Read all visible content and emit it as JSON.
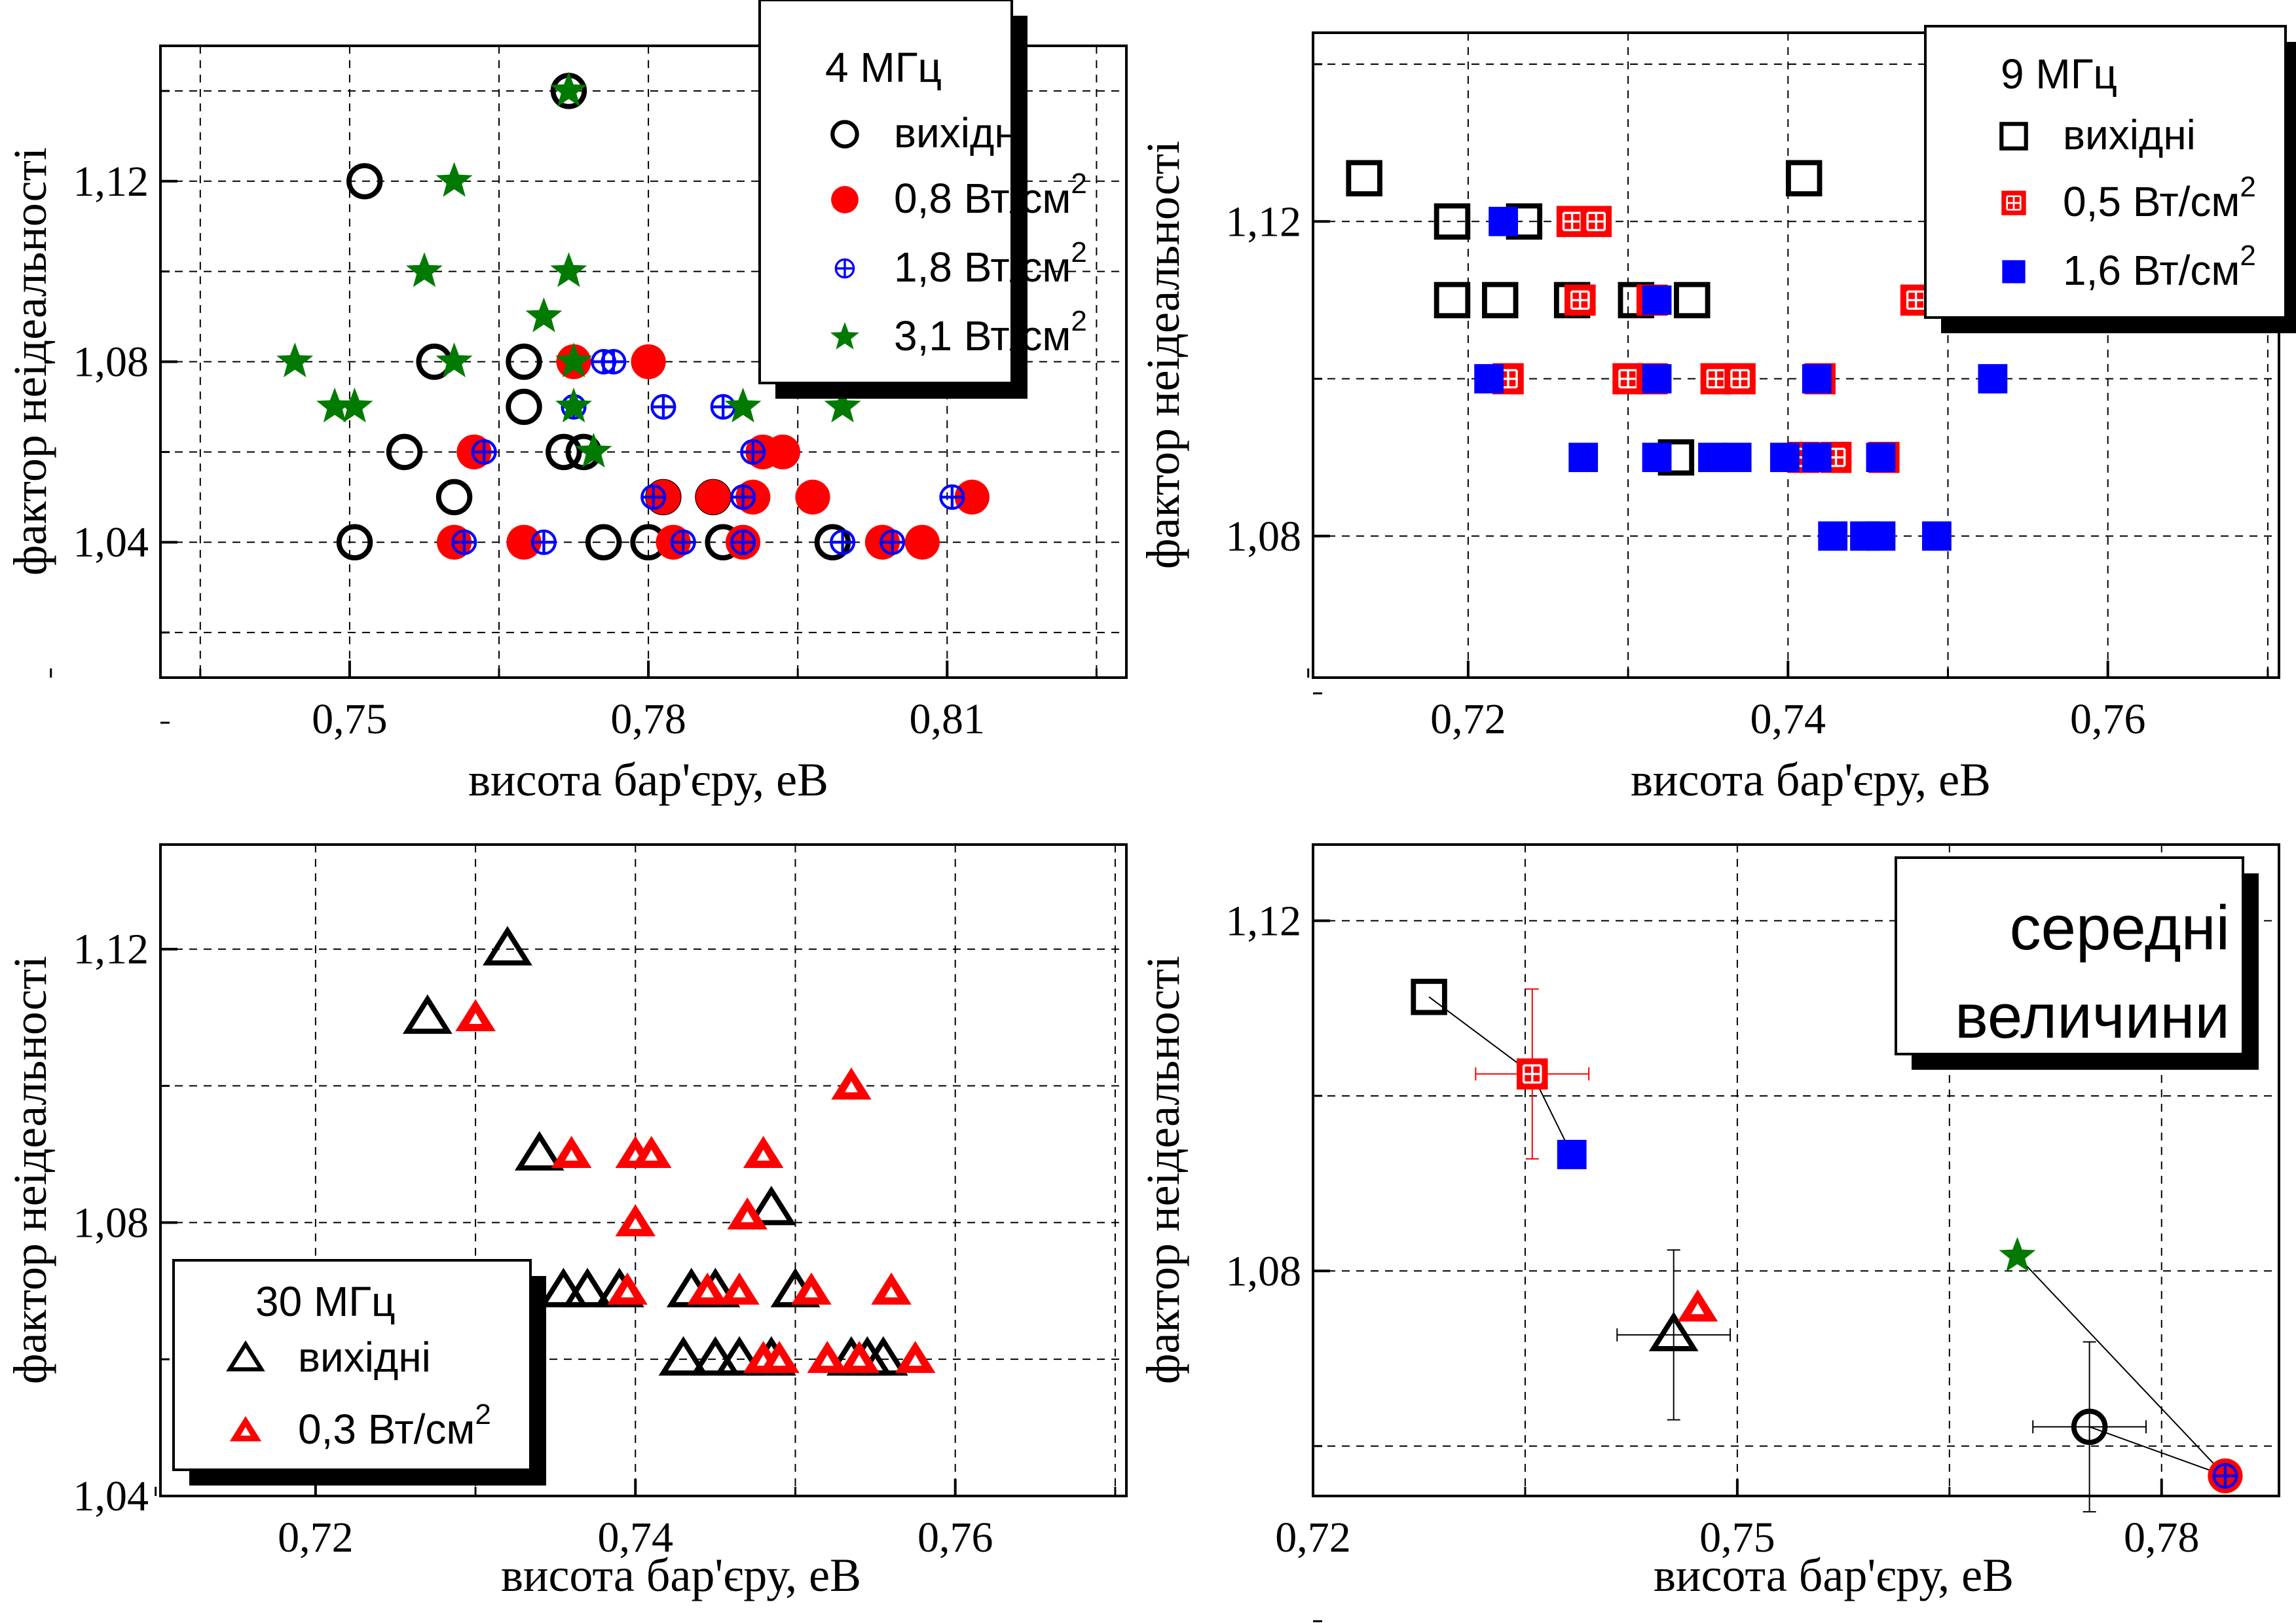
{
  "colors": {
    "black": "#000000",
    "red": "#ff0000",
    "blue": "#0000ff",
    "green": "#007a00"
  },
  "chart_data": [
    {
      "type": "scatter",
      "xlabel": "висота бар'єру,  еВ",
      "ylabel": "фактор неідеальності",
      "xlim": [
        0.731,
        0.828
      ],
      "ylim": [
        1.01,
        1.15
      ],
      "xticks": [
        0.75,
        0.78,
        0.81
      ],
      "xtick_labels": [
        "0,75",
        "0,78",
        "0,81"
      ],
      "yticks": [
        1.04,
        1.08,
        1.12
      ],
      "ytick_labels": [
        "1,04",
        "1,08",
        "1,12"
      ],
      "grid": true,
      "legend": {
        "title": "4 МГц",
        "entries": [
          {
            "label": "вихідні",
            "sup": ""
          },
          {
            "label": "0,8 Вт/см",
            "sup": "2"
          },
          {
            "label": "1,8 Вт/см",
            "sup": "2"
          },
          {
            "label": "3,1 Вт/см",
            "sup": "2"
          }
        ]
      },
      "series": [
        {
          "marker": "open-circle",
          "color": "#000000",
          "points": [
            [
              0.7515,
              1.12
            ],
            [
              0.7585,
              1.08
            ],
            [
              0.7675,
              1.08
            ],
            [
              0.7675,
              1.07
            ],
            [
              0.7715,
              1.06
            ],
            [
              0.7735,
              1.06
            ],
            [
              0.7555,
              1.06
            ],
            [
              0.7605,
              1.05
            ],
            [
              0.7505,
              1.04
            ],
            [
              0.7755,
              1.04
            ],
            [
              0.78,
              1.04
            ],
            [
              0.7815,
              1.05
            ],
            [
              0.7865,
              1.05
            ],
            [
              0.7875,
              1.04
            ],
            [
              0.7985,
              1.04
            ],
            [
              0.772,
              1.14
            ]
          ]
        },
        {
          "marker": "filled-circle",
          "color": "#ff0000",
          "points": [
            [
              0.7625,
              1.06
            ],
            [
              0.7725,
              1.08
            ],
            [
              0.78,
              1.08
            ],
            [
              0.7605,
              1.04
            ],
            [
              0.7675,
              1.04
            ],
            [
              0.7815,
              1.05
            ],
            [
              0.7825,
              1.04
            ],
            [
              0.7865,
              1.05
            ],
            [
              0.7905,
              1.05
            ],
            [
              0.7895,
              1.04
            ],
            [
              0.7915,
              1.06
            ],
            [
              0.7935,
              1.06
            ],
            [
              0.7965,
              1.05
            ],
            [
              0.8035,
              1.04
            ],
            [
              0.8075,
              1.04
            ],
            [
              0.8125,
              1.05
            ]
          ]
        },
        {
          "marker": "circle-plus",
          "color": "#0000ff",
          "points": [
            [
              0.7615,
              1.04
            ],
            [
              0.7695,
              1.04
            ],
            [
              0.7755,
              1.08
            ],
            [
              0.7765,
              1.08
            ],
            [
              0.7815,
              1.07
            ],
            [
              0.7875,
              1.07
            ],
            [
              0.7635,
              1.06
            ],
            [
              0.7905,
              1.06
            ],
            [
              0.7725,
              1.07
            ],
            [
              0.7805,
              1.05
            ],
            [
              0.7895,
              1.05
            ],
            [
              0.7835,
              1.04
            ],
            [
              0.7895,
              1.04
            ],
            [
              0.7995,
              1.04
            ],
            [
              0.8045,
              1.04
            ],
            [
              0.8105,
              1.05
            ]
          ]
        },
        {
          "marker": "star",
          "color": "#007a00",
          "points": [
            [
              0.772,
              1.14
            ],
            [
              0.7605,
              1.12
            ],
            [
              0.7575,
              1.1
            ],
            [
              0.772,
              1.1
            ],
            [
              0.7695,
              1.09
            ],
            [
              0.7445,
              1.08
            ],
            [
              0.7605,
              1.08
            ],
            [
              0.7725,
              1.08
            ],
            [
              0.7485,
              1.07
            ],
            [
              0.7505,
              1.07
            ],
            [
              0.7725,
              1.07
            ],
            [
              0.7745,
              1.06
            ],
            [
              0.7895,
              1.07
            ],
            [
              0.7995,
              1.07
            ]
          ]
        }
      ]
    },
    {
      "type": "scatter",
      "xlabel": "висота бар'єру,  еВ",
      "ylabel": "фактор неідеальності",
      "xlim": [
        0.7103,
        0.7707
      ],
      "ylim": [
        1.062,
        1.144
      ],
      "xticks": [
        0.72,
        0.74,
        0.76
      ],
      "xtick_labels": [
        "0,72",
        "0,74",
        "0,76"
      ],
      "yticks": [
        1.08,
        1.12
      ],
      "ytick_labels": [
        "1,08",
        "1,12"
      ],
      "grid": true,
      "legend": {
        "title": "9 МГц",
        "entries": [
          {
            "label": "вихідні",
            "sup": ""
          },
          {
            "label": "0,5 Вт/см",
            "sup": "2"
          },
          {
            "label": "1,6 Вт/см",
            "sup": "2"
          }
        ]
      },
      "series": [
        {
          "marker": "open-square",
          "color": "#000000",
          "points": [
            [
              0.7135,
              1.1255
            ],
            [
              0.741,
              1.1255
            ],
            [
              0.719,
              1.12
            ],
            [
              0.7235,
              1.12
            ],
            [
              0.719,
              1.11
            ],
            [
              0.722,
              1.11
            ],
            [
              0.7265,
              1.11
            ],
            [
              0.7305,
              1.11
            ],
            [
              0.734,
              1.11
            ],
            [
              0.733,
              1.09
            ]
          ]
        },
        {
          "marker": "square-grid",
          "color": "#ff0000",
          "points": [
            [
              0.7265,
              1.12
            ],
            [
              0.728,
              1.12
            ],
            [
              0.727,
              1.11
            ],
            [
              0.7315,
              1.11
            ],
            [
              0.748,
              1.11
            ],
            [
              0.7225,
              1.1
            ],
            [
              0.73,
              1.1
            ],
            [
              0.7315,
              1.1
            ],
            [
              0.7355,
              1.1
            ],
            [
              0.737,
              1.1
            ],
            [
              0.742,
              1.1
            ],
            [
              0.741,
              1.09
            ],
            [
              0.743,
              1.09
            ],
            [
              0.746,
              1.09
            ]
          ]
        },
        {
          "marker": "filled-square",
          "color": "#0000ff",
          "points": [
            [
              0.7222,
              1.12
            ],
            [
              0.7318,
              1.11
            ],
            [
              0.7213,
              1.1
            ],
            [
              0.7318,
              1.1
            ],
            [
              0.7418,
              1.1
            ],
            [
              0.7528,
              1.1
            ],
            [
              0.7272,
              1.09
            ],
            [
              0.7318,
              1.09
            ],
            [
              0.7353,
              1.09
            ],
            [
              0.7368,
              1.09
            ],
            [
              0.7398,
              1.09
            ],
            [
              0.7418,
              1.09
            ],
            [
              0.7458,
              1.09
            ],
            [
              0.7428,
              1.08
            ],
            [
              0.7448,
              1.08
            ],
            [
              0.7458,
              1.08
            ],
            [
              0.7493,
              1.08
            ]
          ]
        }
      ]
    },
    {
      "type": "scatter",
      "xlabel": "висота бар'єру,  еВ",
      "ylabel": "фактор неідеальності",
      "xlim": [
        0.7103,
        0.7707
      ],
      "ylim": [
        1.04,
        1.1353
      ],
      "xticks": [
        0.72,
        0.74,
        0.76
      ],
      "xtick_labels": [
        "0,72",
        "0,74",
        "0,76"
      ],
      "yticks": [
        1.04,
        1.08,
        1.12
      ],
      "ytick_labels": [
        "1,04",
        "1,08",
        "1,12"
      ],
      "grid": true,
      "legend": {
        "title": "30 МГц",
        "entries": [
          {
            "label": "вихідні",
            "sup": ""
          },
          {
            "label": "0,3 Вт/см",
            "sup": "2"
          }
        ]
      },
      "series": [
        {
          "marker": "open-triangle",
          "color": "#000000",
          "points": [
            [
              0.732,
              1.12
            ],
            [
              0.727,
              1.11
            ],
            [
              0.734,
              1.09
            ],
            [
              0.7485,
              1.082
            ],
            [
              0.7355,
              1.07
            ],
            [
              0.737,
              1.07
            ],
            [
              0.739,
              1.07
            ],
            [
              0.7435,
              1.07
            ],
            [
              0.745,
              1.07
            ],
            [
              0.75,
              1.07
            ],
            [
              0.743,
              1.06
            ],
            [
              0.745,
              1.06
            ],
            [
              0.7465,
              1.06
            ],
            [
              0.7485,
              1.06
            ],
            [
              0.7535,
              1.06
            ],
            [
              0.7545,
              1.06
            ],
            [
              0.7555,
              1.06
            ]
          ]
        },
        {
          "marker": "filled-triangle",
          "color": "#ff0000",
          "points": [
            [
              0.73,
              1.11
            ],
            [
              0.7535,
              1.1
            ],
            [
              0.736,
              1.09
            ],
            [
              0.74,
              1.09
            ],
            [
              0.741,
              1.09
            ],
            [
              0.748,
              1.09
            ],
            [
              0.74,
              1.08
            ],
            [
              0.747,
              1.081
            ],
            [
              0.7395,
              1.07
            ],
            [
              0.7445,
              1.07
            ],
            [
              0.7465,
              1.07
            ],
            [
              0.751,
              1.07
            ],
            [
              0.756,
              1.07
            ],
            [
              0.748,
              1.06
            ],
            [
              0.749,
              1.06
            ],
            [
              0.752,
              1.06
            ],
            [
              0.754,
              1.06
            ],
            [
              0.7575,
              1.06
            ]
          ]
        }
      ]
    },
    {
      "type": "scatter",
      "xlabel": "висота бар'єру,  еВ",
      "ylabel": "фактор неідеальності",
      "xlim": [
        0.72,
        0.7883
      ],
      "ylim": [
        1.0543,
        1.1287
      ],
      "xticks": [
        0.72,
        0.75,
        0.78
      ],
      "xtick_labels": [
        "0,72",
        "0,75",
        "0,78"
      ],
      "yticks": [
        1.08,
        1.12
      ],
      "ytick_labels": [
        "1,08",
        "1,12"
      ],
      "grid": true,
      "legend": {
        "title": "",
        "lines": [
          "середні",
          "величини"
        ]
      },
      "series": [
        {
          "marker": "open-square",
          "color": "#000000",
          "points": [
            [
              0.7282,
              1.1113
            ]
          ]
        },
        {
          "marker": "square-grid",
          "color": "#ff0000",
          "points": [
            [
              0.7355,
              1.1025
            ]
          ],
          "xerr": 0.004,
          "yerr": 0.0097
        },
        {
          "marker": "filled-square",
          "color": "#0000ff",
          "points": [
            [
              0.7383,
              1.0933
            ]
          ]
        },
        {
          "marker": "open-triangle",
          "color": "#000000",
          "points": [
            [
              0.7455,
              1.0727
            ]
          ],
          "xerr": 0.004,
          "yerr": 0.0097
        },
        {
          "marker": "filled-triangle",
          "color": "#ff0000",
          "points": [
            [
              0.7472,
              1.0758
            ]
          ]
        },
        {
          "marker": "open-circle",
          "color": "#000000",
          "points": [
            [
              0.7749,
              1.0622
            ]
          ],
          "xerr": 0.004,
          "yerr": 0.0097
        },
        {
          "marker": "star",
          "color": "#007a00",
          "points": [
            [
              0.7698,
              1.0817
            ]
          ]
        },
        {
          "marker": "filled-circle",
          "color": "#ff0000",
          "points": [
            [
              0.7845,
              1.0566
            ]
          ]
        },
        {
          "marker": "circle-plus",
          "color": "#0000ff",
          "points": [
            [
              0.7845,
              1.0566
            ]
          ]
        }
      ],
      "connectors": [
        [
          [
            0.7282,
            1.1113
          ],
          [
            0.7355,
            1.1025
          ],
          [
            0.7383,
            1.0933
          ]
        ],
        [
          [
            0.7698,
            1.0817
          ],
          [
            0.7845,
            1.0566
          ],
          [
            0.7749,
            1.0622
          ]
        ]
      ]
    }
  ]
}
